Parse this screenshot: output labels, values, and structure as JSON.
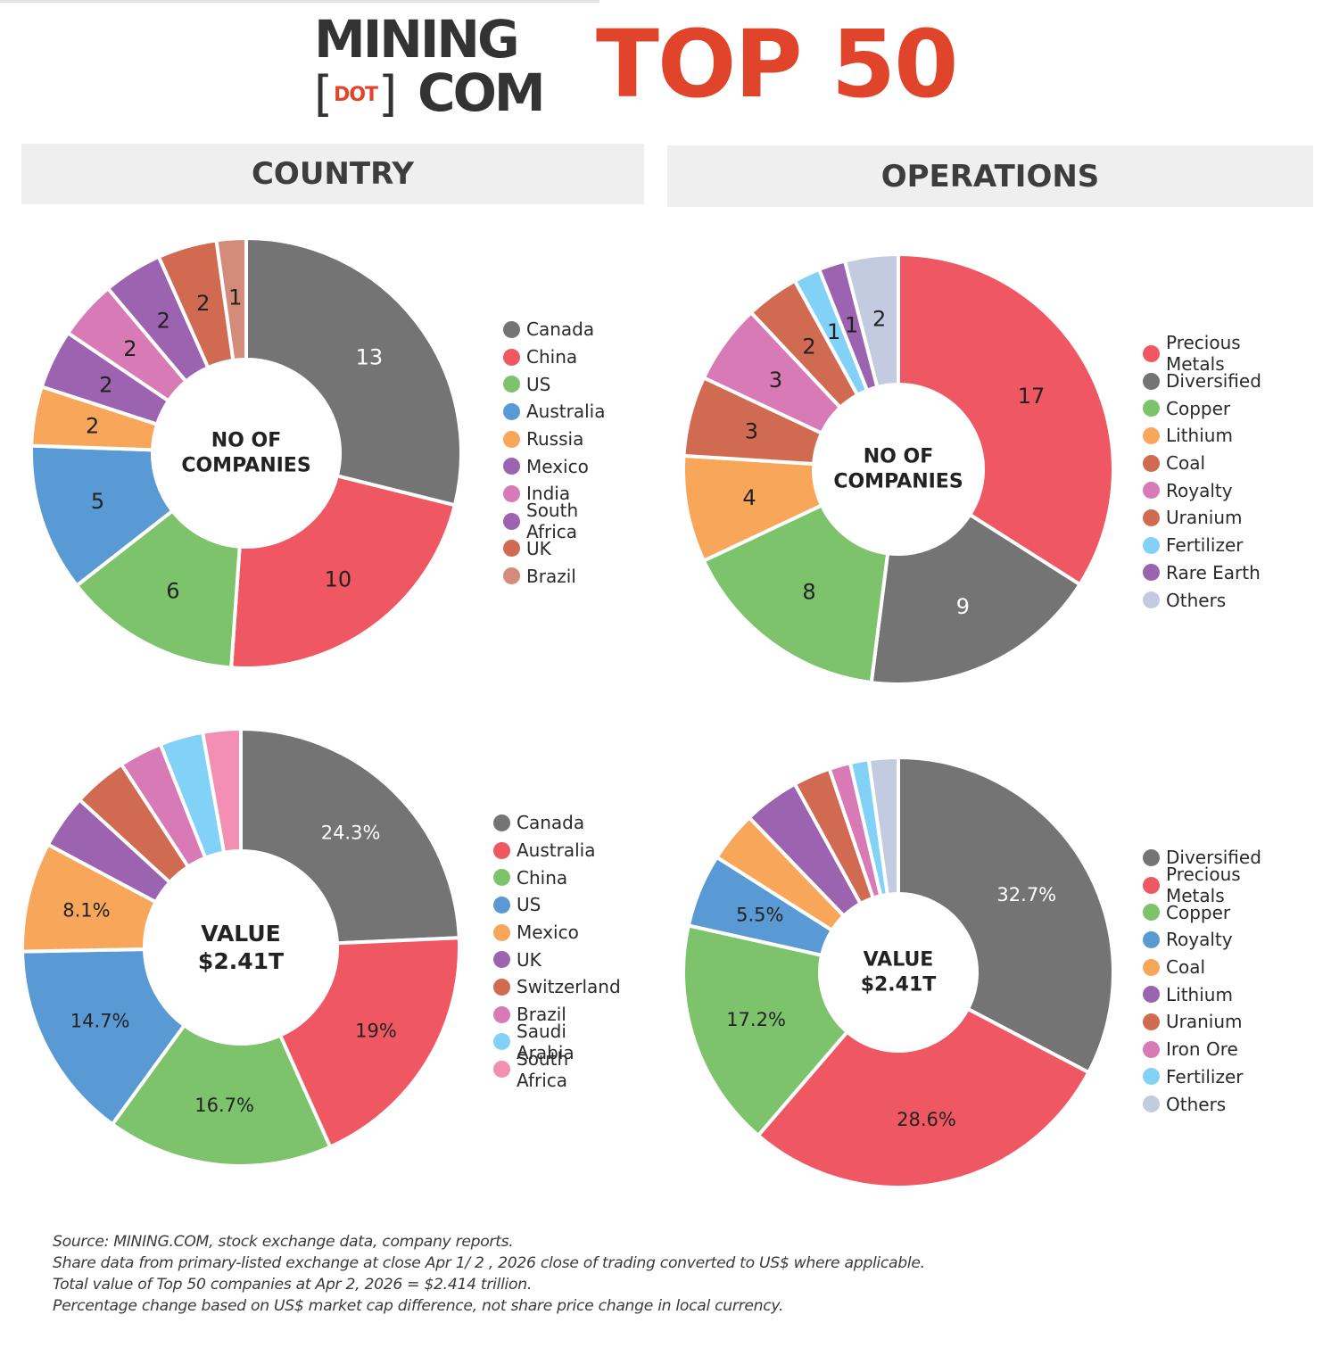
{
  "header": {
    "logo_line1": "MINING",
    "logo_dot": "DOT",
    "logo_bracket_open": "[",
    "logo_bracket_close": "]",
    "logo_line2": "COM",
    "title": "TOP 50",
    "brand_color": "#e0442a"
  },
  "sections": {
    "country": "COUNTRY",
    "operations": "OPERATIONS"
  },
  "chart_data": [
    {
      "id": "country-count",
      "type": "pie",
      "variant": "donut",
      "section": "COUNTRY",
      "center_label": "NO OF\nCOMPANIES",
      "categories": [
        "Canada",
        "China",
        "US",
        "Australia",
        "Russia",
        "Mexico",
        "India",
        "South Africa",
        "UK",
        "Brazil"
      ],
      "values": [
        13,
        10,
        6,
        5,
        2,
        2,
        2,
        2,
        2,
        1
      ],
      "labels": [
        "13",
        "10",
        "6",
        "5",
        "2",
        "2",
        "2",
        "2",
        "2",
        "1"
      ],
      "label_colors": [
        "#ffffff",
        "#222222",
        "#222222",
        "#222222",
        "#222222",
        "#222222",
        "#222222",
        "#222222",
        "#222222",
        "#222222"
      ],
      "colors": [
        "#747474",
        "#ef5862",
        "#7cc36c",
        "#5a9ad4",
        "#f8a75a",
        "#9b63b0",
        "#d87ab6",
        "#9b63b0",
        "#d06b52",
        "#d48b7a"
      ],
      "legend_position": "right",
      "unit": "companies"
    },
    {
      "id": "operations-count",
      "type": "pie",
      "variant": "donut",
      "section": "OPERATIONS",
      "center_label": "NO OF\nCOMPANIES",
      "categories": [
        "Precious Metals",
        "Diversified",
        "Copper",
        "Lithium",
        "Coal",
        "Royalty",
        "Uranium",
        "Fertilizer",
        "Rare Earth",
        "Others"
      ],
      "values": [
        17,
        9,
        8,
        4,
        3,
        3,
        2,
        1,
        1,
        2
      ],
      "labels": [
        "17",
        "9",
        "8",
        "4",
        "3",
        "3",
        "2",
        "1",
        "1",
        "2"
      ],
      "label_colors": [
        "#222222",
        "#ffffff",
        "#222222",
        "#222222",
        "#222222",
        "#222222",
        "#222222",
        "#222222",
        "#222222",
        "#222222"
      ],
      "colors": [
        "#ef5862",
        "#747474",
        "#7cc36c",
        "#f8a75a",
        "#d06b52",
        "#d87ab6",
        "#d06b52",
        "#82d2f7",
        "#9b63b0",
        "#c3cbe0"
      ],
      "legend_position": "right",
      "unit": "companies"
    },
    {
      "id": "country-value",
      "type": "pie",
      "variant": "donut",
      "section": "COUNTRY",
      "center_label": "VALUE\n$2.41T",
      "categories": [
        "Canada",
        "Australia",
        "China",
        "US",
        "Mexico",
        "UK",
        "Switzerland",
        "Brazil",
        "Saudi Arabia",
        "South Africa"
      ],
      "values": [
        24.3,
        19,
        16.7,
        14.7,
        8.1,
        4.0,
        4.0,
        3.2,
        3.2,
        2.8
      ],
      "labels": [
        "24.3%",
        "19%",
        "16.7%",
        "14.7%",
        "8.1%",
        "",
        "",
        "",
        "",
        ""
      ],
      "label_colors": [
        "#ffffff",
        "#222222",
        "#222222",
        "#222222",
        "#222222",
        "#222222",
        "#222222",
        "#222222",
        "#222222",
        "#222222"
      ],
      "colors": [
        "#747474",
        "#ef5862",
        "#7cc36c",
        "#5a9ad4",
        "#f8a75a",
        "#9b63b0",
        "#d06b52",
        "#d87ab6",
        "#82d2f7",
        "#f28fb3"
      ],
      "legend_position": "right",
      "unit": "% of total market value (unlabeled slices estimated)"
    },
    {
      "id": "operations-value",
      "type": "pie",
      "variant": "donut",
      "section": "OPERATIONS",
      "center_label": "VALUE\n$2.41T",
      "categories": [
        "Diversified",
        "Precious Metals",
        "Copper",
        "Royalty",
        "Coal",
        "Lithium",
        "Uranium",
        "Iron Ore",
        "Fertilizer",
        "Others"
      ],
      "values": [
        32.7,
        28.6,
        17.2,
        5.5,
        3.8,
        4.2,
        2.8,
        1.6,
        1.4,
        2.2
      ],
      "labels": [
        "32.7%",
        "28.6%",
        "17.2%",
        "5.5%",
        "",
        "",
        "",
        "",
        "",
        ""
      ],
      "label_colors": [
        "#ffffff",
        "#222222",
        "#222222",
        "#222222",
        "#222222",
        "#222222",
        "#222222",
        "#222222",
        "#222222",
        "#222222"
      ],
      "colors": [
        "#747474",
        "#ef5862",
        "#7cc36c",
        "#5a9ad4",
        "#f8a75a",
        "#9b63b0",
        "#d06b52",
        "#d87ab6",
        "#82d2f7",
        "#c3cbe0"
      ],
      "legend_position": "right",
      "unit": "% of total market value (unlabeled slices estimated)"
    }
  ],
  "footer": {
    "lines": [
      "Source: MINING.COM, stock exchange data, company reports.",
      "Share data from primary-listed exchange at close Apr 1/ 2 , 2026 close of trading converted to US$ where applicable.",
      "Total value of Top 50 companies at Apr 2, 2026 = $2.414 trillion.",
      "Percentage change based on US$ market cap difference, not share price change in local currency."
    ]
  }
}
